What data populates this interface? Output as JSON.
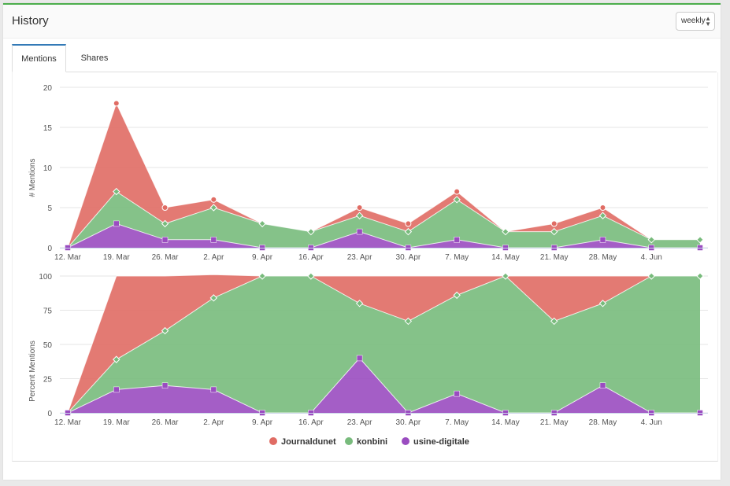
{
  "header": {
    "title": "History"
  },
  "interval_select": {
    "value": "weekly",
    "arrows": "▲▼"
  },
  "tabs": [
    {
      "label": "Mentions",
      "active": true
    },
    {
      "label": "Shares",
      "active": false
    }
  ],
  "colors": {
    "journaldunet": "#e06c64",
    "konbini": "#78bb7c",
    "usine": "#9a4cc0"
  },
  "chart_data": [
    {
      "type": "area",
      "stacked": true,
      "ylabel": "# Mentions",
      "ylim": [
        0,
        20
      ],
      "yticks": [
        0,
        5,
        10,
        15,
        20
      ],
      "x": [
        "12. Mar",
        "19. Mar",
        "26. Mar",
        "2. Apr",
        "9. Apr",
        "16. Apr",
        "23. Apr",
        "30. Apr",
        "7. May",
        "14. May",
        "21. May",
        "28. May",
        "4. Jun",
        ""
      ],
      "xticks": [
        "12. Mar",
        "19. Mar",
        "26. Mar",
        "2. Apr",
        "9. Apr",
        "16. Apr",
        "23. Apr",
        "30. Apr",
        "7. May",
        "14. May",
        "21. May",
        "28. May",
        "4. Jun"
      ],
      "series": [
        {
          "name": "Journaldunet",
          "values": [
            0,
            11,
            2,
            1,
            0,
            0,
            1,
            1,
            1,
            0,
            1,
            1,
            0,
            0
          ]
        },
        {
          "name": "konbini",
          "values": [
            0,
            4,
            2,
            4,
            3,
            2,
            2,
            2,
            5,
            2,
            2,
            3,
            1,
            1
          ]
        },
        {
          "name": "usine-digitale",
          "values": [
            0,
            3,
            1,
            1,
            0,
            0,
            2,
            0,
            1,
            0,
            0,
            1,
            0,
            0
          ]
        }
      ],
      "grid": true
    },
    {
      "type": "area",
      "stacked": "percent",
      "ylabel": "Percent Mentions",
      "ylim": [
        0,
        100
      ],
      "yticks": [
        0,
        25,
        50,
        75,
        100
      ],
      "x": [
        "12. Mar",
        "19. Mar",
        "26. Mar",
        "2. Apr",
        "9. Apr",
        "16. Apr",
        "23. Apr",
        "30. Apr",
        "7. May",
        "14. May",
        "21. May",
        "28. May",
        "4. Jun",
        ""
      ],
      "xticks": [
        "12. Mar",
        "19. Mar",
        "26. Mar",
        "2. Apr",
        "9. Apr",
        "16. Apr",
        "23. Apr",
        "30. Apr",
        "7. May",
        "14. May",
        "21. May",
        "28. May",
        "4. Jun"
      ],
      "series": [
        {
          "name": "Journaldunet",
          "values": [
            0,
            61,
            40,
            17,
            0,
            0,
            20,
            33,
            14,
            0,
            33,
            20,
            0,
            0
          ]
        },
        {
          "name": "konbini",
          "values": [
            0,
            22,
            40,
            67,
            100,
            100,
            40,
            67,
            72,
            100,
            67,
            60,
            100,
            100
          ]
        },
        {
          "name": "usine-digitale",
          "values": [
            0,
            17,
            20,
            17,
            0,
            0,
            40,
            0,
            14,
            0,
            0,
            20,
            0,
            0
          ]
        }
      ],
      "grid": true,
      "legend": "bottom-center"
    }
  ],
  "legend": [
    {
      "name": "Journaldunet",
      "color": "#e06c64"
    },
    {
      "name": "konbini",
      "color": "#78bb7c"
    },
    {
      "name": "usine-digitale",
      "color": "#9a4cc0"
    }
  ]
}
